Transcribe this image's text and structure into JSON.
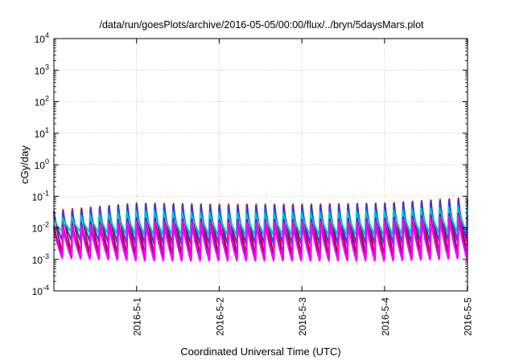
{
  "chart_data": {
    "type": "line",
    "title": "/data/run/goesPlots/archive/2016-05-05/00:00/flux/../bryn/5daysMars.plot",
    "xlabel": "Coordinated Universal Time (UTC)",
    "ylabel": "cGy/day",
    "y_scale": "log",
    "ylim": [
      0.0001,
      10000
    ],
    "y_ticks": [
      {
        "base": "10",
        "exp": "-4"
      },
      {
        "base": "10",
        "exp": "-3"
      },
      {
        "base": "10",
        "exp": "-2"
      },
      {
        "base": "10",
        "exp": "-1"
      },
      {
        "base": "10",
        "exp": "0"
      },
      {
        "base": "10",
        "exp": "1"
      },
      {
        "base": "10",
        "exp": "2"
      },
      {
        "base": "10",
        "exp": "3"
      },
      {
        "base": "10",
        "exp": "4"
      }
    ],
    "xlim": [
      "2016-04-30T00:00",
      "2016-05-05T00:06"
    ],
    "x_ticks": [
      "2016-5-1",
      "2016-5-2",
      "2016-5-3",
      "2016-5-4",
      "2016-5-5"
    ],
    "grid": true,
    "legend": "none",
    "sawtooth_period_hours": 2.67,
    "series": [
      {
        "color": "#cc0000",
        "peak_values": [
          0.035,
          0.06,
          0.055,
          0.055,
          0.06,
          0.09
        ],
        "trough_values": [
          0.0015,
          0.0012,
          0.0012,
          0.0012,
          0.0012,
          0.0015
        ]
      },
      {
        "color": "#2040ff",
        "peak_values": [
          0.03,
          0.055,
          0.05,
          0.05,
          0.055,
          0.08
        ],
        "trough_values": [
          0.004,
          0.003,
          0.003,
          0.003,
          0.003,
          0.004
        ]
      },
      {
        "color": "#00c8c8",
        "peak_values": [
          0.02,
          0.035,
          0.03,
          0.03,
          0.035,
          0.05
        ],
        "trough_values": [
          0.008,
          0.006,
          0.006,
          0.006,
          0.006,
          0.008
        ]
      },
      {
        "color": "#8000c0",
        "peak_values": [
          0.012,
          0.02,
          0.018,
          0.018,
          0.02,
          0.03
        ],
        "trough_values": [
          0.0012,
          0.001,
          0.001,
          0.001,
          0.001,
          0.0012
        ]
      },
      {
        "color": "#ff00ff",
        "peak_values": [
          0.01,
          0.016,
          0.015,
          0.015,
          0.016,
          0.025
        ],
        "trough_values": [
          0.0011,
          0.0009,
          0.0009,
          0.0009,
          0.0009,
          0.0011
        ]
      }
    ]
  }
}
